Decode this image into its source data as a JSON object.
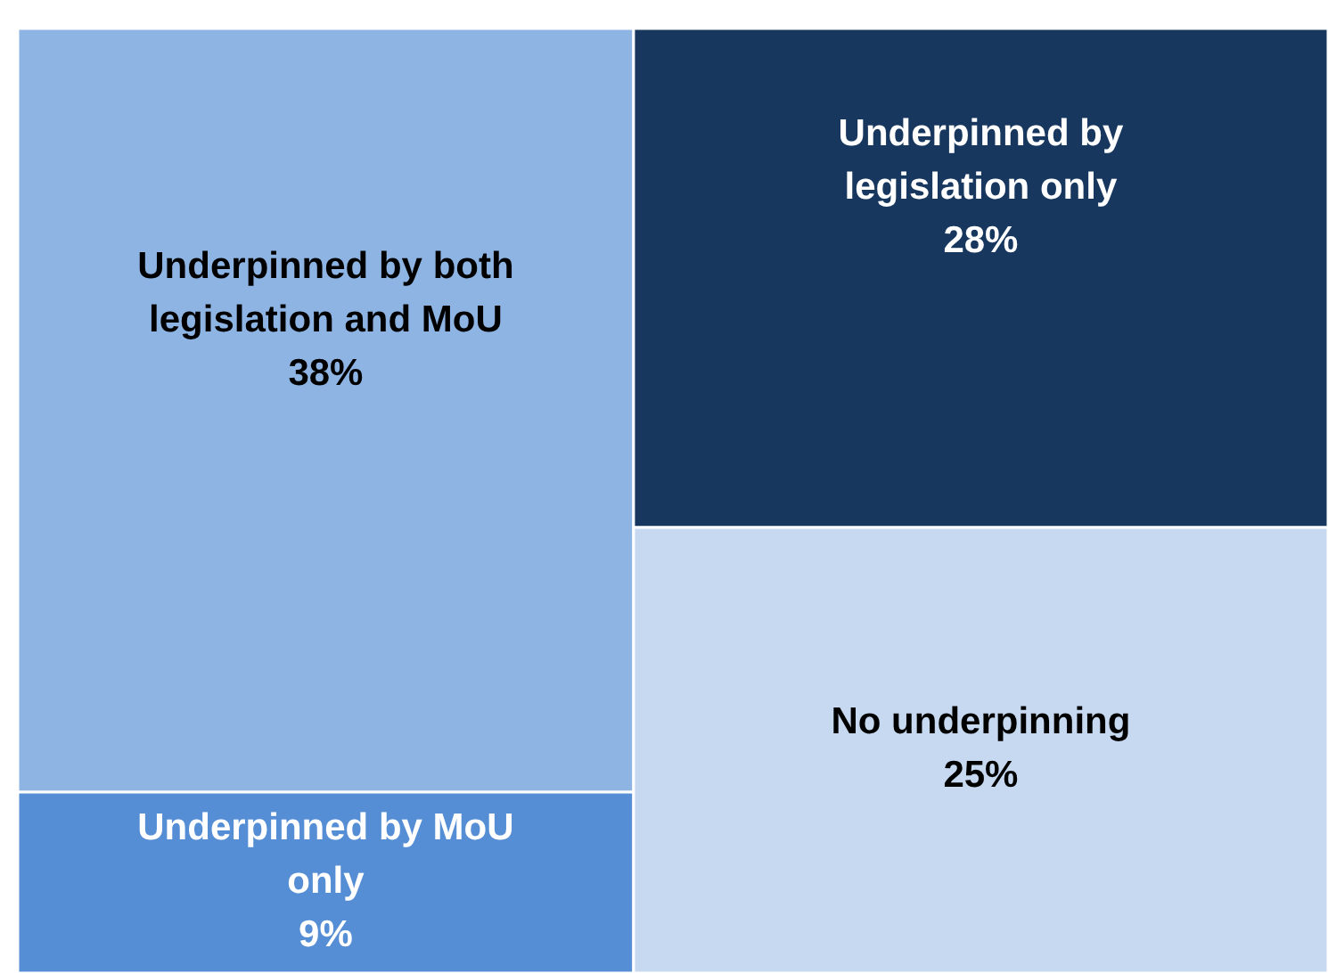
{
  "chart_data": {
    "type": "other",
    "categories": [
      "Underpinned by both legislation and MoU",
      "Underpinned by MoU only",
      "Underpinned by legislation only",
      "No underpinning"
    ],
    "values": [
      38,
      9,
      28,
      25
    ],
    "value_labels": [
      "38%",
      "9%",
      "28%",
      "25%"
    ],
    "colors": [
      "#8eb4e3",
      "#558ed5",
      "#17375e",
      "#c6d9f1"
    ]
  }
}
